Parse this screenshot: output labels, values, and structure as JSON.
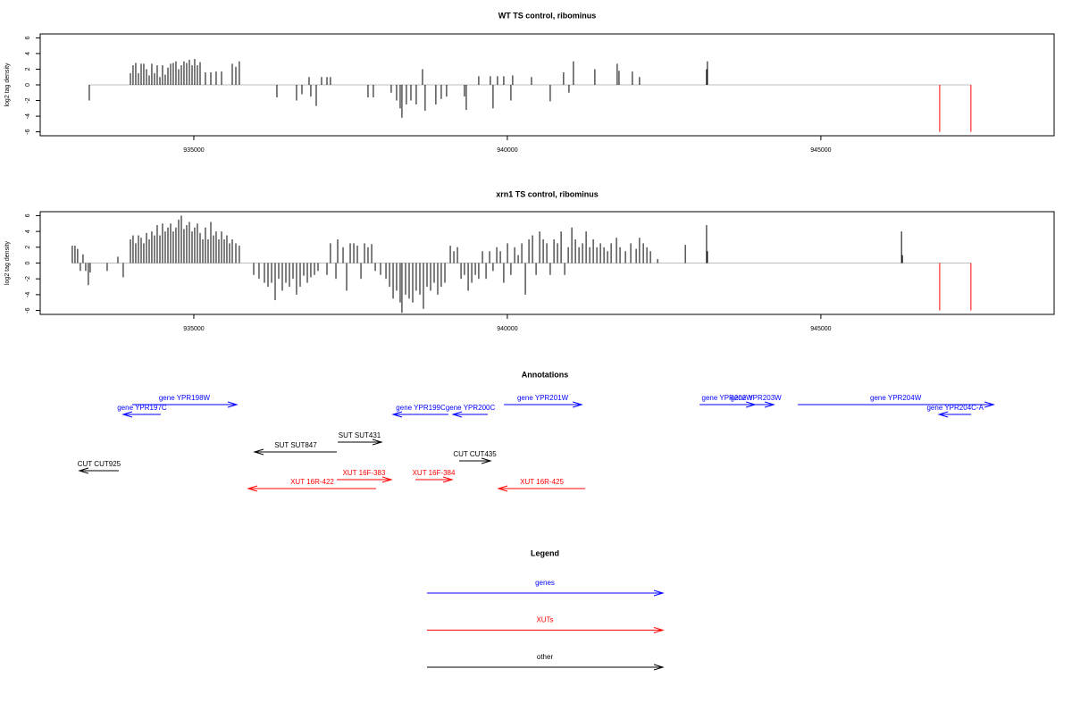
{
  "chart_data": [
    {
      "type": "bar",
      "title": "WT TS control, ribominus",
      "ylabel": "log2 tag density",
      "xlim": [
        932550,
        948720
      ],
      "xticks": [
        935000,
        940000,
        945000
      ],
      "ylim": [
        -6.5,
        6.5
      ],
      "yticks": [
        -6,
        -4,
        -2,
        0,
        2,
        4,
        6
      ],
      "zero_line_color": "#bebebe",
      "series": [
        {
          "color": "#000000",
          "x": [
            933333,
            933989,
            934031,
            934074,
            934117,
            934160,
            934202,
            934245,
            934288,
            934330,
            934373,
            934416,
            934459,
            934501,
            934544,
            934587,
            934630,
            934672,
            934715,
            934758,
            934801,
            934843,
            934886,
            934929,
            934972,
            935014,
            935057,
            935100,
            935185,
            935271,
            935356,
            935442,
            935613,
            935670,
            935726,
            936325,
            936638,
            936724,
            936838,
            936866,
            936952,
            937037,
            937123,
            937179,
            937778,
            937863,
            938148,
            938234,
            938291,
            938319,
            938390,
            938462,
            938547,
            938647,
            938689,
            938860,
            938946,
            939031,
            939316,
            939345,
            939544,
            939729,
            939772,
            939843,
            939943,
            940057,
            940085,
            940385,
            940684,
            940897,
            940983,
            941054,
            941396,
            941752,
            941781,
            941994,
            942108,
            943177,
            943191
          ],
          "values": [
            -2,
            1.5,
            2.5,
            2.8,
            1.5,
            2.7,
            2.7,
            2,
            1.2,
            2.7,
            1.5,
            2.5,
            1,
            2.5,
            1.3,
            2.2,
            2.7,
            2.8,
            3,
            2,
            2.5,
            3,
            2.8,
            3.2,
            2.5,
            3.3,
            2.5,
            2.9,
            1.6,
            1.6,
            1.7,
            1.7,
            2.7,
            2.3,
            3,
            -1.6,
            -2,
            -1.2,
            1,
            -1.5,
            -2.7,
            1,
            1,
            1,
            -1.6,
            -1.6,
            -1,
            -2,
            -3,
            -4.2,
            -2.5,
            -2,
            -2.5,
            2,
            -3.3,
            -2.5,
            -1.8,
            -1.5,
            -1.5,
            -3.2,
            1.1,
            1.1,
            -3,
            1.1,
            1.1,
            -2,
            1.2,
            1,
            -2.1,
            1.6,
            -1,
            3,
            2,
            2.7,
            1.8,
            1.7,
            1,
            2,
            3
          ]
        },
        {
          "color": "#ff0000",
          "x": [
            946895,
            947393
          ],
          "values": [
            -6,
            -6
          ]
        }
      ]
    },
    {
      "type": "bar",
      "title": "xrn1 TS control, ribominus",
      "ylabel": "log2 tag density",
      "xlim": [
        932550,
        948720
      ],
      "xticks": [
        935000,
        940000,
        945000
      ],
      "ylim": [
        -6.5,
        6.5
      ],
      "yticks": [
        -6,
        -4,
        -2,
        0,
        2,
        4,
        6
      ],
      "zero_line_color": "#bebebe",
      "series": [
        {
          "color": "#000000",
          "x": [
            933062,
            933105,
            933147,
            933190,
            933233,
            933276,
            933318,
            933347,
            933618,
            933789,
            933874,
            933989,
            934031,
            934074,
            934117,
            934160,
            934202,
            934245,
            934288,
            934330,
            934373,
            934416,
            934459,
            934501,
            934544,
            934587,
            934630,
            934672,
            934715,
            934758,
            934801,
            934843,
            934886,
            934929,
            934972,
            935014,
            935057,
            935100,
            935143,
            935185,
            935228,
            935271,
            935314,
            935356,
            935399,
            935442,
            935485,
            935527,
            935570,
            935613,
            935670,
            935726,
            935955,
            936040,
            936126,
            936183,
            936240,
            936297,
            936354,
            936411,
            936468,
            936525,
            936582,
            936638,
            936696,
            936753,
            936810,
            936866,
            936924,
            936981,
            937123,
            937179,
            937266,
            937294,
            937380,
            937437,
            937494,
            937551,
            937608,
            937665,
            937722,
            937778,
            937836,
            937893,
            937978,
            938064,
            938121,
            938178,
            938234,
            938291,
            938319,
            938377,
            938434,
            938491,
            938547,
            938605,
            938662,
            938719,
            938776,
            938833,
            938890,
            938946,
            939004,
            939090,
            939147,
            939204,
            939261,
            939316,
            939375,
            939432,
            939489,
            939544,
            939603,
            939660,
            939717,
            939772,
            939831,
            939888,
            939943,
            940002,
            940057,
            940116,
            940173,
            940230,
            940287,
            940344,
            940401,
            940458,
            940515,
            940572,
            940629,
            940684,
            940743,
            940800,
            940857,
            940914,
            940971,
            941028,
            941085,
            941142,
            941199,
            941256,
            941313,
            941370,
            941427,
            941484,
            941541,
            941598,
            941655,
            941740,
            941797,
            941883,
            941968,
            942054,
            942108,
            942168,
            942225,
            942282,
            942396,
            942838,
            943177,
            943191,
            946286,
            946300
          ],
          "values": [
            2.2,
            2.2,
            1.8,
            -1,
            1.1,
            -1,
            -2.8,
            -1.2,
            -1,
            0.8,
            -1.8,
            3,
            3.5,
            2.5,
            3.5,
            3.2,
            2.5,
            3.8,
            3,
            4,
            3.5,
            4.8,
            3.5,
            5,
            4,
            4.5,
            5,
            4,
            4.5,
            5.5,
            6,
            4.3,
            4.8,
            5.2,
            4,
            4.5,
            5,
            3.8,
            3,
            4.5,
            3,
            5.2,
            3.5,
            4,
            3,
            4,
            3,
            3.5,
            2.5,
            3,
            2.5,
            2.2,
            -1.5,
            -2,
            -2.5,
            -3,
            -2.5,
            -4.7,
            -2,
            -3.5,
            -2.5,
            -3,
            -2,
            -4,
            -3,
            -1.6,
            -2.5,
            -1.8,
            -1.5,
            -1,
            -1.5,
            2.5,
            -2,
            3,
            2,
            -3.5,
            2.5,
            2.5,
            2.2,
            -2,
            2.5,
            2,
            2.4,
            -1,
            -1.5,
            -2,
            -3,
            -4.5,
            -3.5,
            -5,
            -6.3,
            -4,
            -4.5,
            -5,
            -3.5,
            -4,
            -5.8,
            -3,
            -3.5,
            -2.5,
            -4,
            -3,
            -2.5,
            2.2,
            1.5,
            2,
            -2,
            -1.5,
            -3.5,
            -2.5,
            -1.5,
            -2,
            1.5,
            -2,
            1.5,
            -1,
            2,
            1.5,
            -2.5,
            2.5,
            -1.5,
            2,
            1,
            2.5,
            -4,
            3,
            3.5,
            -1.5,
            4,
            3,
            2.5,
            -1.5,
            3,
            2.5,
            4,
            -1.5,
            2,
            4.5,
            3,
            2,
            2.5,
            4,
            2,
            3,
            2,
            2.5,
            2,
            1.5,
            2.5,
            3.2,
            2,
            1.5,
            2.5,
            1.8,
            3.2,
            2.5,
            2,
            1.5,
            0.5,
            2.3,
            4.8,
            1.5,
            4,
            1
          ]
        },
        {
          "color": "#ff0000",
          "x": [
            946895,
            947393
          ],
          "values": [
            -6,
            -6
          ]
        }
      ]
    }
  ],
  "annotations": {
    "title": "Annotations",
    "xlim": [
      932550,
      948720
    ],
    "features": [
      {
        "label": "gene YPR198W",
        "start": 934017,
        "end": 935684,
        "strand": "+",
        "color": "#0000ff"
      },
      {
        "label": "gene YPR197C",
        "start": 933874,
        "end": 934473,
        "strand": "-",
        "color": "#0000ff"
      },
      {
        "label": "gene YPR199C",
        "start": 938178,
        "end": 939061,
        "strand": "-",
        "color": "#0000ff"
      },
      {
        "label": "gene YPR200C",
        "start": 939133,
        "end": 939688,
        "strand": "-",
        "color": "#0000ff"
      },
      {
        "label": "gene YPR201W",
        "start": 939945,
        "end": 941185,
        "strand": "+",
        "color": "#0000ff"
      },
      {
        "label": "gene YPR202W",
        "start": 943066,
        "end": 943949,
        "strand": "+",
        "color": "#0000ff"
      },
      {
        "label": "gene YPR203W",
        "start": 943678,
        "end": 944248,
        "strand": "+",
        "color": "#0000ff"
      },
      {
        "label": "gene YPR204W",
        "start": 944633,
        "end": 947754,
        "strand": "+",
        "color": "#0000ff"
      },
      {
        "label": "gene YPR204C-A",
        "start": 946885,
        "end": 947398,
        "strand": "-",
        "color": "#0000ff"
      },
      {
        "label": "SUT SUT847",
        "start": 935969,
        "end": 937280,
        "strand": "-",
        "color": "#000000"
      },
      {
        "label": "SUT SUT431",
        "start": 937294,
        "end": 937993,
        "strand": "+",
        "color": "#000000"
      },
      {
        "label": "CUT CUT435",
        "start": 939232,
        "end": 939731,
        "strand": "+",
        "color": "#000000"
      },
      {
        "label": "CUT CUT925",
        "start": 933176,
        "end": 933803,
        "strand": "-",
        "color": "#000000"
      },
      {
        "label": "XUT 16R-422",
        "start": 935869,
        "end": 937907,
        "strand": "-",
        "color": "#ff0000"
      },
      {
        "label": "XUT 16F-383",
        "start": 937280,
        "end": 938149,
        "strand": "+",
        "color": "#ff0000"
      },
      {
        "label": "XUT 16F-384",
        "start": 938534,
        "end": 939118,
        "strand": "+",
        "color": "#ff0000"
      },
      {
        "label": "XUT 16R-425",
        "start": 939859,
        "end": 941242,
        "strand": "-",
        "color": "#ff0000"
      }
    ]
  },
  "legend": {
    "title": "Legend",
    "items": [
      {
        "label": "genes",
        "color": "#0000ff"
      },
      {
        "label": "XUTs",
        "color": "#ff0000"
      },
      {
        "label": "other",
        "color": "#000000"
      }
    ]
  }
}
